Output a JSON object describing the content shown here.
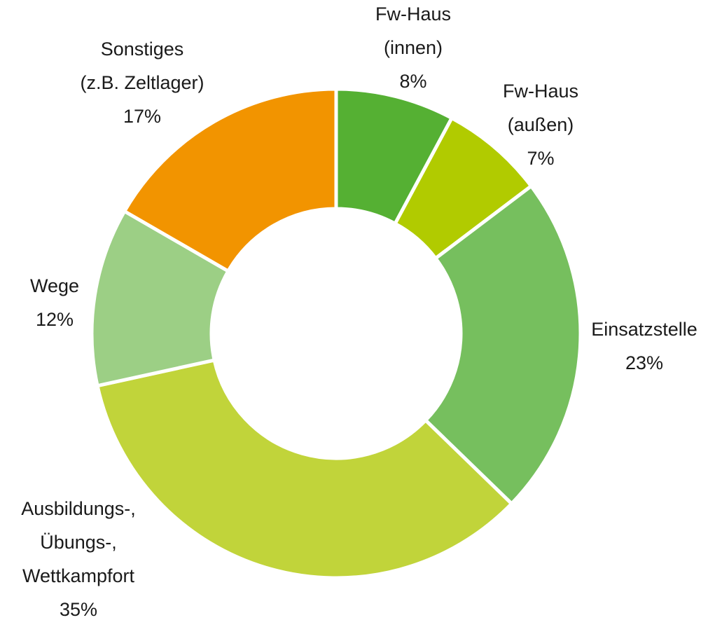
{
  "chart_data": {
    "type": "donut",
    "categories": [
      [
        "Fw-Haus",
        "(innen)"
      ],
      [
        "Fw-Haus",
        "(außen)"
      ],
      [
        "Einsatzstelle"
      ],
      [
        "Ausbildungs-,",
        "Übungs-,",
        "Wettkampfort"
      ],
      [
        "Wege"
      ],
      [
        "Sonstiges",
        "(z.B. Zeltlager)"
      ]
    ],
    "values": [
      8,
      7,
      23,
      35,
      12,
      17
    ],
    "value_labels": [
      "8%",
      "7%",
      "23%",
      "35%",
      "12%",
      "17%"
    ],
    "colors": [
      "#55b033",
      "#b1cb00",
      "#76bf5e",
      "#c1d43a",
      "#9ccf85",
      "#f29400"
    ]
  }
}
